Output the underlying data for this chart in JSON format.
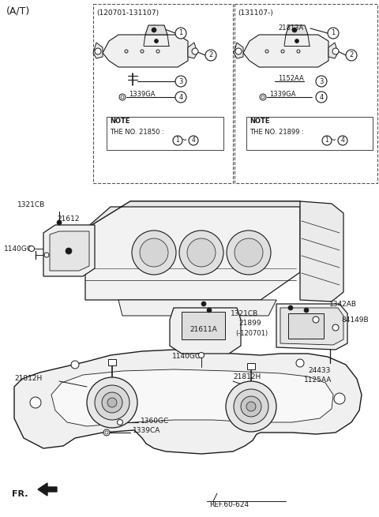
{
  "background": "#ffffff",
  "line_color": "#1a1a1a",
  "text_color": "#1a1a1a",
  "figsize": [
    4.8,
    6.55
  ],
  "dpi": 100,
  "title": "(A/T)",
  "top_left_label": "(120701-131107)",
  "top_right_label": "(131107-)",
  "note_left": "THE NO. 21850 :",
  "note_right": "THE NO. 21899 :",
  "part_1152AA": "1152AA",
  "part_21813A": "21813A",
  "part_1339GA": "1339GA",
  "ref": "REF.60-624",
  "fr": "FR."
}
